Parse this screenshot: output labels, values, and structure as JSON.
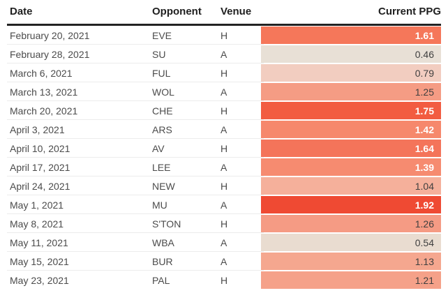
{
  "colors": {
    "header_text": "#1f1f1f",
    "header_rule": "#222222",
    "row_text": "#4b4b4b",
    "separator": "#ececec",
    "cell_text_light": "#ffffff",
    "cell_text_dark": "#3f3f3f"
  },
  "header": {
    "date": "Date",
    "opponent": "Opponent",
    "venue": "Venue",
    "ppg": "Current PPG"
  },
  "chart_data": {
    "type": "table",
    "title": "",
    "columns": [
      "Date",
      "Opponent",
      "Venue",
      "Current PPG"
    ],
    "heatmap_column": "Current PPG",
    "value_range": [
      0.46,
      1.92
    ],
    "rows": [
      {
        "date": "February 20, 2021",
        "opponent": "EVE",
        "venue": "H",
        "ppg": "1.61",
        "cell_color": "#f5775a",
        "text_style": "light"
      },
      {
        "date": "February 28, 2021",
        "opponent": "SU",
        "venue": "A",
        "ppg": "0.46",
        "cell_color": "#e8e0d6",
        "text_style": "dark"
      },
      {
        "date": "March 6, 2021",
        "opponent": "FUL",
        "venue": "H",
        "ppg": "0.79",
        "cell_color": "#f2cdc0",
        "text_style": "dark"
      },
      {
        "date": "March 13, 2021",
        "opponent": "WOL",
        "venue": "A",
        "ppg": "1.25",
        "cell_color": "#f59c84",
        "text_style": "dark"
      },
      {
        "date": "March 20, 2021",
        "opponent": "CHE",
        "venue": "H",
        "ppg": "1.75",
        "cell_color": "#f25c41",
        "text_style": "light"
      },
      {
        "date": "April 3, 2021",
        "opponent": "ARS",
        "venue": "A",
        "ppg": "1.42",
        "cell_color": "#f6886c",
        "text_style": "light"
      },
      {
        "date": "April 10, 2021",
        "opponent": "AV",
        "venue": "H",
        "ppg": "1.64",
        "cell_color": "#f4745a",
        "text_style": "light"
      },
      {
        "date": "April 17, 2021",
        "opponent": "LEE",
        "venue": "A",
        "ppg": "1.39",
        "cell_color": "#f68b70",
        "text_style": "light"
      },
      {
        "date": "April 24, 2021",
        "opponent": "NEW",
        "venue": "H",
        "ppg": "1.04",
        "cell_color": "#f5b09b",
        "text_style": "dark"
      },
      {
        "date": "May 1, 2021",
        "opponent": "MU",
        "venue": "A",
        "ppg": "1.92",
        "cell_color": "#ef4a33",
        "text_style": "light"
      },
      {
        "date": "May 8, 2021",
        "opponent": "S'TON",
        "venue": "H",
        "ppg": "1.26",
        "cell_color": "#f59b84",
        "text_style": "dark"
      },
      {
        "date": "May 11, 2021",
        "opponent": "WBA",
        "venue": "A",
        "ppg": "0.54",
        "cell_color": "#e9dcd0",
        "text_style": "dark"
      },
      {
        "date": "May 15, 2021",
        "opponent": "BUR",
        "venue": "A",
        "ppg": "1.13",
        "cell_color": "#f5a78f",
        "text_style": "dark"
      },
      {
        "date": "May 23, 2021",
        "opponent": "PAL",
        "venue": "H",
        "ppg": "1.21",
        "cell_color": "#f5a189",
        "text_style": "dark"
      }
    ]
  }
}
